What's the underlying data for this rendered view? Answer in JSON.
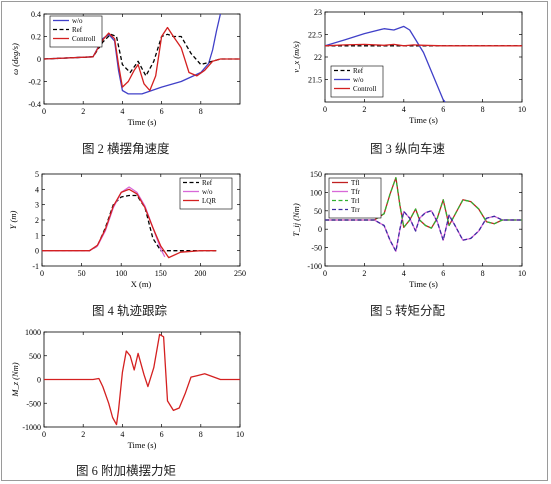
{
  "colors": {
    "wo": "#4040c8",
    "ref": "#000000",
    "controll": "#d42020",
    "tfl": "#c02020",
    "tfr": "#d868d8",
    "trl": "#30b030",
    "trr": "#3a2aa0"
  },
  "captions": {
    "fig2": "图 2  横摆角速度",
    "fig3": "图 3  纵向车速",
    "fig4": "图 4  轨迹跟踪",
    "fig5": "图 5  转矩分配",
    "fig6": "图 6  附加横摆力矩"
  },
  "chart_data": [
    {
      "id": "fig2",
      "type": "line",
      "ylabel": "ω (deg/s)",
      "xlabel": "Time (s)",
      "xlim": [
        0,
        10
      ],
      "ylim": [
        -0.4,
        0.4
      ],
      "xticks": [
        0,
        2,
        4,
        6,
        8
      ],
      "yticks": [
        -0.4,
        -0.2,
        0,
        0.2,
        0.4
      ],
      "ytick_labels": [
        "-0.4",
        "-0.2",
        "0",
        "0.2",
        "0.4"
      ],
      "legend_position": "top-left",
      "series": [
        {
          "name": "w/o",
          "color": "#4040c8",
          "dash": "",
          "x": [
            0,
            2.5,
            3,
            3.3,
            3.6,
            3.8,
            4,
            4.3,
            5,
            5.5,
            6,
            7,
            8,
            8.4,
            8.6,
            8.8,
            9
          ],
          "y": [
            0,
            0.02,
            0.18,
            0.22,
            0.16,
            -0.1,
            -0.28,
            -0.31,
            -0.31,
            -0.28,
            -0.25,
            -0.2,
            -0.12,
            -0.04,
            0.08,
            0.25,
            0.4
          ]
        },
        {
          "name": "Ref",
          "color": "#000000",
          "dash": "4,2.5",
          "x": [
            0,
            2.5,
            3,
            3.4,
            3.7,
            4,
            4.4,
            4.8,
            5.2,
            5.6,
            6,
            6.3,
            6.6,
            7,
            7.5,
            8,
            9,
            10
          ],
          "y": [
            0,
            0.02,
            0.15,
            0.22,
            0.2,
            -0.05,
            -0.12,
            -0.02,
            -0.15,
            -0.02,
            0.2,
            0.22,
            0.2,
            0.2,
            0.05,
            -0.05,
            0,
            0
          ]
        },
        {
          "name": "Controll",
          "color": "#d42020",
          "dash": "",
          "x": [
            0,
            2.5,
            3,
            3.3,
            3.6,
            3.8,
            4,
            4.3,
            4.6,
            4.8,
            5.1,
            5.4,
            5.7,
            6,
            6.3,
            6.6,
            7,
            7.4,
            7.8,
            8.2,
            8.6,
            9,
            10
          ],
          "y": [
            0,
            0.02,
            0.17,
            0.23,
            0.18,
            -0.05,
            -0.25,
            -0.2,
            -0.1,
            -0.05,
            -0.22,
            -0.28,
            -0.15,
            0.2,
            0.28,
            0.2,
            0.1,
            -0.12,
            -0.15,
            -0.1,
            -0.02,
            0,
            0
          ]
        }
      ]
    },
    {
      "id": "fig3",
      "type": "line",
      "ylabel": "v_x (m/s)",
      "xlabel": "Time (s)",
      "xlim": [
        0,
        10
      ],
      "ylim": [
        21,
        23
      ],
      "xticks": [
        0,
        2,
        4,
        6,
        8,
        10
      ],
      "yticks": [
        21.5,
        22,
        22.5,
        23
      ],
      "ytick_labels": [
        "21.5",
        "22",
        "22.5",
        "23"
      ],
      "legend_position": "bottom-left",
      "series": [
        {
          "name": "Ref",
          "color": "#000000",
          "dash": "4,2.5",
          "x": [
            0,
            10
          ],
          "y": [
            22.25,
            22.25
          ]
        },
        {
          "name": "w/o",
          "color": "#4040c8",
          "dash": "",
          "x": [
            0,
            1,
            2,
            3,
            3.5,
            4,
            4.3,
            5,
            6,
            6.2
          ],
          "y": [
            22.25,
            22.38,
            22.52,
            22.63,
            22.6,
            22.68,
            22.6,
            22.1,
            21.05,
            20.95
          ]
        },
        {
          "name": "Controll",
          "color": "#d42020",
          "dash": "",
          "x": [
            0,
            1,
            2,
            3,
            3.5,
            4,
            4.5,
            5,
            6,
            7,
            8,
            10
          ],
          "y": [
            22.25,
            22.27,
            22.28,
            22.26,
            22.28,
            22.25,
            22.27,
            22.26,
            22.25,
            22.25,
            22.25,
            22.25
          ]
        }
      ]
    },
    {
      "id": "fig4",
      "type": "line",
      "ylabel": "Y (m)",
      "xlabel": "X (m)",
      "xlim": [
        0,
        250
      ],
      "ylim": [
        -1,
        5
      ],
      "xticks": [
        0,
        50,
        100,
        150,
        200,
        250
      ],
      "yticks": [
        -1,
        0,
        1,
        2,
        3,
        4,
        5
      ],
      "ytick_labels": [
        "-1",
        "0",
        "1",
        "2",
        "3",
        "4",
        "5"
      ],
      "legend_position": "top-right",
      "series": [
        {
          "name": "Ref",
          "color": "#000000",
          "dash": "4,2.5",
          "x": [
            0,
            60,
            70,
            80,
            90,
            100,
            110,
            120,
            130,
            140,
            150,
            220
          ],
          "y": [
            0,
            0,
            0.3,
            1.5,
            3.0,
            3.5,
            3.6,
            3.6,
            2.8,
            0.8,
            0,
            0
          ]
        },
        {
          "name": "w/o",
          "color": "#d868d8",
          "dash": "",
          "x": [
            0,
            60,
            70,
            80,
            90,
            100,
            110,
            120,
            130,
            140,
            150,
            155
          ],
          "y": [
            0,
            0,
            0.3,
            1.3,
            2.8,
            3.8,
            4.15,
            3.8,
            2.9,
            1.5,
            0.1,
            -0.4
          ]
        },
        {
          "name": "LQR",
          "color": "#d42020",
          "dash": "",
          "x": [
            0,
            60,
            70,
            80,
            90,
            100,
            110,
            120,
            130,
            140,
            150,
            160,
            175,
            200,
            220
          ],
          "y": [
            0,
            0,
            0.35,
            1.4,
            2.9,
            3.8,
            4.0,
            3.7,
            2.8,
            1.5,
            0.3,
            -0.45,
            -0.1,
            0,
            0
          ]
        }
      ]
    },
    {
      "id": "fig5",
      "type": "line",
      "ylabel": "T_ij (Nm)",
      "xlabel": "Time (s)",
      "xlim": [
        0,
        10
      ],
      "ylim": [
        -100,
        150
      ],
      "xticks": [
        0,
        2,
        4,
        6,
        8,
        10
      ],
      "yticks": [
        -100,
        -50,
        0,
        50,
        100,
        150
      ],
      "ytick_labels": [
        "-100",
        "-50",
        "0",
        "50",
        "100",
        "150"
      ],
      "legend_position": "top-left",
      "series": [
        {
          "name": "Tfl",
          "color": "#c02020",
          "dash": "",
          "x": [
            0,
            2.5,
            3,
            3.3,
            3.6,
            3.8,
            4,
            4.3,
            4.6,
            4.8,
            5.1,
            5.4,
            5.7,
            6,
            6.3,
            6.6,
            7,
            7.4,
            7.8,
            8.2,
            8.6,
            9,
            10
          ],
          "y": [
            25,
            25,
            42,
            95,
            140,
            65,
            5,
            25,
            55,
            25,
            10,
            3,
            30,
            80,
            10,
            40,
            80,
            75,
            55,
            20,
            15,
            25,
            25
          ]
        },
        {
          "name": "Tfr",
          "color": "#d868d8",
          "dash": "",
          "x": [
            0,
            2.5,
            3,
            3.3,
            3.6,
            3.8,
            4,
            4.3,
            4.6,
            4.8,
            5.1,
            5.4,
            5.7,
            6,
            6.3,
            6.6,
            7,
            7.4,
            7.8,
            8.2,
            8.6,
            9,
            10
          ],
          "y": [
            25,
            25,
            10,
            -30,
            -60,
            0,
            48,
            30,
            -5,
            30,
            45,
            50,
            20,
            -30,
            38,
            10,
            -30,
            -25,
            -5,
            30,
            35,
            25,
            25
          ]
        },
        {
          "name": "Trl",
          "color": "#30b030",
          "dash": "4,2.5",
          "x": [
            0,
            2.5,
            3,
            3.3,
            3.6,
            3.8,
            4,
            4.3,
            4.6,
            4.8,
            5.1,
            5.4,
            5.7,
            6,
            6.3,
            6.6,
            7,
            7.4,
            7.8,
            8.2,
            8.6,
            9,
            10
          ],
          "y": [
            25,
            25,
            42,
            95,
            140,
            65,
            5,
            25,
            55,
            25,
            10,
            3,
            30,
            80,
            10,
            40,
            80,
            75,
            55,
            20,
            15,
            25,
            25
          ]
        },
        {
          "name": "Trr",
          "color": "#3a2aa0",
          "dash": "4,2.5",
          "x": [
            0,
            2.5,
            3,
            3.3,
            3.6,
            3.8,
            4,
            4.3,
            4.6,
            4.8,
            5.1,
            5.4,
            5.7,
            6,
            6.3,
            6.6,
            7,
            7.4,
            7.8,
            8.2,
            8.6,
            9,
            10
          ],
          "y": [
            25,
            25,
            10,
            -30,
            -60,
            0,
            48,
            30,
            -5,
            30,
            45,
            50,
            20,
            -30,
            38,
            10,
            -30,
            -25,
            -5,
            30,
            35,
            25,
            25
          ]
        }
      ]
    },
    {
      "id": "fig6",
      "type": "line",
      "ylabel": "M_z (Nm)",
      "xlabel": "Time (s)",
      "xlim": [
        0,
        10
      ],
      "ylim": [
        -1000,
        1000
      ],
      "xticks": [
        0,
        2,
        4,
        6,
        8,
        10
      ],
      "yticks": [
        -1000,
        -500,
        0,
        500,
        1000
      ],
      "ytick_labels": [
        "-1000",
        "-500",
        "0",
        "500",
        "1000"
      ],
      "legend_position": "none",
      "series": [
        {
          "name": "",
          "color": "#d42020",
          "dash": "",
          "x": [
            0,
            2.5,
            2.8,
            3,
            3.3,
            3.5,
            3.7,
            3.8,
            4,
            4.2,
            4.4,
            4.6,
            4.8,
            5.1,
            5.3,
            5.6,
            5.9,
            6.1,
            6.3,
            6.6,
            6.9,
            7.2,
            7.5,
            7.8,
            8.2,
            8.6,
            9,
            10
          ],
          "y": [
            0,
            0,
            20,
            -150,
            -500,
            -800,
            -950,
            -650,
            150,
            600,
            500,
            200,
            550,
            100,
            -150,
            250,
            950,
            900,
            -450,
            -650,
            -600,
            -300,
            50,
            80,
            120,
            60,
            0,
            0
          ]
        }
      ]
    }
  ]
}
